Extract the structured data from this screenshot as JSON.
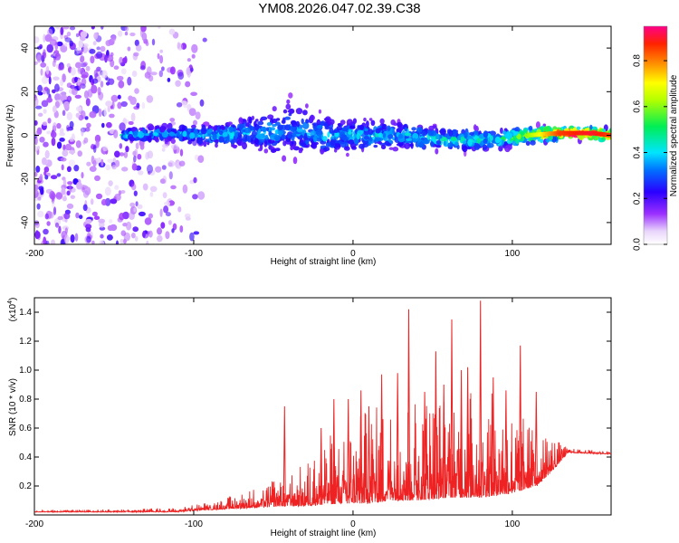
{
  "figure": {
    "title": "YM08.2026.047.02.39.C38"
  },
  "chart_data": [
    {
      "type": "heatmap",
      "xlabel": "Height of straight line (km)",
      "ylabel": "Frequency (Hz)",
      "xlim": [
        -200,
        162
      ],
      "ylim": [
        -50,
        50
      ],
      "xticks": [
        {
          "value": -200,
          "label": "-200"
        },
        {
          "value": -100,
          "label": "-100"
        },
        {
          "value": 0,
          "label": "0"
        },
        {
          "value": 100,
          "label": "100"
        }
      ],
      "yticks": [
        {
          "value": -40,
          "label": "-40"
        },
        {
          "value": -20,
          "label": "-20"
        },
        {
          "value": 0,
          "label": "0"
        },
        {
          "value": 20,
          "label": "20"
        },
        {
          "value": 40,
          "label": "40"
        }
      ],
      "colorbar": {
        "label": "Normalized spectral amplitude",
        "range": [
          0,
          0.95
        ],
        "ticks": [
          {
            "value": 0.0,
            "label": "0.0"
          },
          {
            "value": 0.2,
            "label": "0.2"
          },
          {
            "value": 0.4,
            "label": "0.4"
          },
          {
            "value": 0.6,
            "label": "0.6"
          },
          {
            "value": 0.8,
            "label": "0.8"
          }
        ]
      },
      "description": "noise blobs scattered left of -95 km; band centered near 0 Hz from -145 km to 162 km, amplitude rising toward right end",
      "band_profile": [
        {
          "x": -145,
          "center_hz": 0,
          "halfwidth_hz": 3,
          "amplitude": 0.35
        },
        {
          "x": -120,
          "center_hz": 1,
          "halfwidth_hz": 5,
          "amplitude": 0.25
        },
        {
          "x": -90,
          "center_hz": 0,
          "halfwidth_hz": 6,
          "amplitude": 0.3
        },
        {
          "x": -60,
          "center_hz": 1,
          "halfwidth_hz": 10,
          "amplitude": 0.3
        },
        {
          "x": -40,
          "center_hz": 3,
          "halfwidth_hz": 18,
          "amplitude": 0.25
        },
        {
          "x": -20,
          "center_hz": 0,
          "halfwidth_hz": 12,
          "amplitude": 0.3
        },
        {
          "x": 0,
          "center_hz": 0,
          "halfwidth_hz": 10,
          "amplitude": 0.3
        },
        {
          "x": 30,
          "center_hz": 0,
          "halfwidth_hz": 8,
          "amplitude": 0.3
        },
        {
          "x": 60,
          "center_hz": -2,
          "halfwidth_hz": 7,
          "amplitude": 0.35
        },
        {
          "x": 90,
          "center_hz": -2,
          "halfwidth_hz": 6,
          "amplitude": 0.35
        },
        {
          "x": 110,
          "center_hz": 0,
          "halfwidth_hz": 5,
          "amplitude": 0.6
        },
        {
          "x": 130,
          "center_hz": 1,
          "halfwidth_hz": 4,
          "amplitude": 0.85
        },
        {
          "x": 150,
          "center_hz": 1,
          "halfwidth_hz": 4,
          "amplitude": 0.9
        },
        {
          "x": 162,
          "center_hz": 0,
          "halfwidth_hz": 4,
          "amplitude": 0.85
        }
      ]
    },
    {
      "type": "line",
      "xlabel": "Height of straight line (km)",
      "ylabel": "SNR (10 * v/v)",
      "ymultiplier": "(x10",
      "ymultiplier_exp": "4",
      "ymultiplier_close": ")",
      "xlim": [
        -200,
        162
      ],
      "ylim": [
        0,
        1.5
      ],
      "xticks": [
        {
          "value": -200,
          "label": "-200"
        },
        {
          "value": -100,
          "label": "-100"
        },
        {
          "value": 0,
          "label": "0"
        },
        {
          "value": 100,
          "label": "100"
        }
      ],
      "yticks": [
        {
          "value": 0.2,
          "label": "0.2"
        },
        {
          "value": 0.4,
          "label": "0.4"
        },
        {
          "value": 0.6,
          "label": "0.6"
        },
        {
          "value": 0.8,
          "label": "0.8"
        },
        {
          "value": 1.0,
          "label": "1.0"
        },
        {
          "value": 1.2,
          "label": "1.2"
        },
        {
          "value": 1.4,
          "label": "1.4"
        }
      ],
      "color": "#ee2222",
      "series": [
        {
          "name": "SNR",
          "envelope": [
            {
              "x": -200,
              "base": 0.02,
              "peak": 0.03
            },
            {
              "x": -150,
              "base": 0.02,
              "peak": 0.04
            },
            {
              "x": -110,
              "base": 0.02,
              "peak": 0.05
            },
            {
              "x": -100,
              "base": 0.03,
              "peak": 0.07
            },
            {
              "x": -80,
              "base": 0.04,
              "peak": 0.12
            },
            {
              "x": -60,
              "base": 0.05,
              "peak": 0.2
            },
            {
              "x": -45,
              "base": 0.06,
              "peak": 0.3
            },
            {
              "x": -30,
              "base": 0.06,
              "peak": 0.35
            },
            {
              "x": -20,
              "base": 0.07,
              "peak": 0.55
            },
            {
              "x": -5,
              "base": 0.08,
              "peak": 0.6
            },
            {
              "x": 10,
              "base": 0.08,
              "peak": 0.75
            },
            {
              "x": 25,
              "base": 0.1,
              "peak": 0.8
            },
            {
              "x": 40,
              "base": 0.1,
              "peak": 0.85
            },
            {
              "x": 60,
              "base": 0.12,
              "peak": 0.85
            },
            {
              "x": 80,
              "base": 0.12,
              "peak": 0.9
            },
            {
              "x": 100,
              "base": 0.15,
              "peak": 0.75
            },
            {
              "x": 115,
              "base": 0.2,
              "peak": 0.6
            },
            {
              "x": 125,
              "base": 0.3,
              "peak": 0.55
            },
            {
              "x": 135,
              "base": 0.43,
              "peak": 0.46
            },
            {
              "x": 162,
              "base": 0.42,
              "peak": 0.44
            }
          ],
          "spikes": [
            {
              "x": -43,
              "y": 0.75
            },
            {
              "x": -20,
              "y": 0.6
            },
            {
              "x": -12,
              "y": 0.8
            },
            {
              "x": -3,
              "y": 0.8
            },
            {
              "x": 5,
              "y": 0.86
            },
            {
              "x": 10,
              "y": 0.75
            },
            {
              "x": 18,
              "y": 0.97
            },
            {
              "x": 28,
              "y": 0.98
            },
            {
              "x": 35,
              "y": 1.42
            },
            {
              "x": 45,
              "y": 0.85
            },
            {
              "x": 52,
              "y": 1.13
            },
            {
              "x": 57,
              "y": 0.9
            },
            {
              "x": 62,
              "y": 1.35
            },
            {
              "x": 68,
              "y": 1.0
            },
            {
              "x": 72,
              "y": 1.02
            },
            {
              "x": 80,
              "y": 1.48
            },
            {
              "x": 88,
              "y": 0.95
            },
            {
              "x": 96,
              "y": 0.86
            },
            {
              "x": 105,
              "y": 1.17
            },
            {
              "x": 115,
              "y": 0.85
            }
          ]
        }
      ]
    }
  ]
}
